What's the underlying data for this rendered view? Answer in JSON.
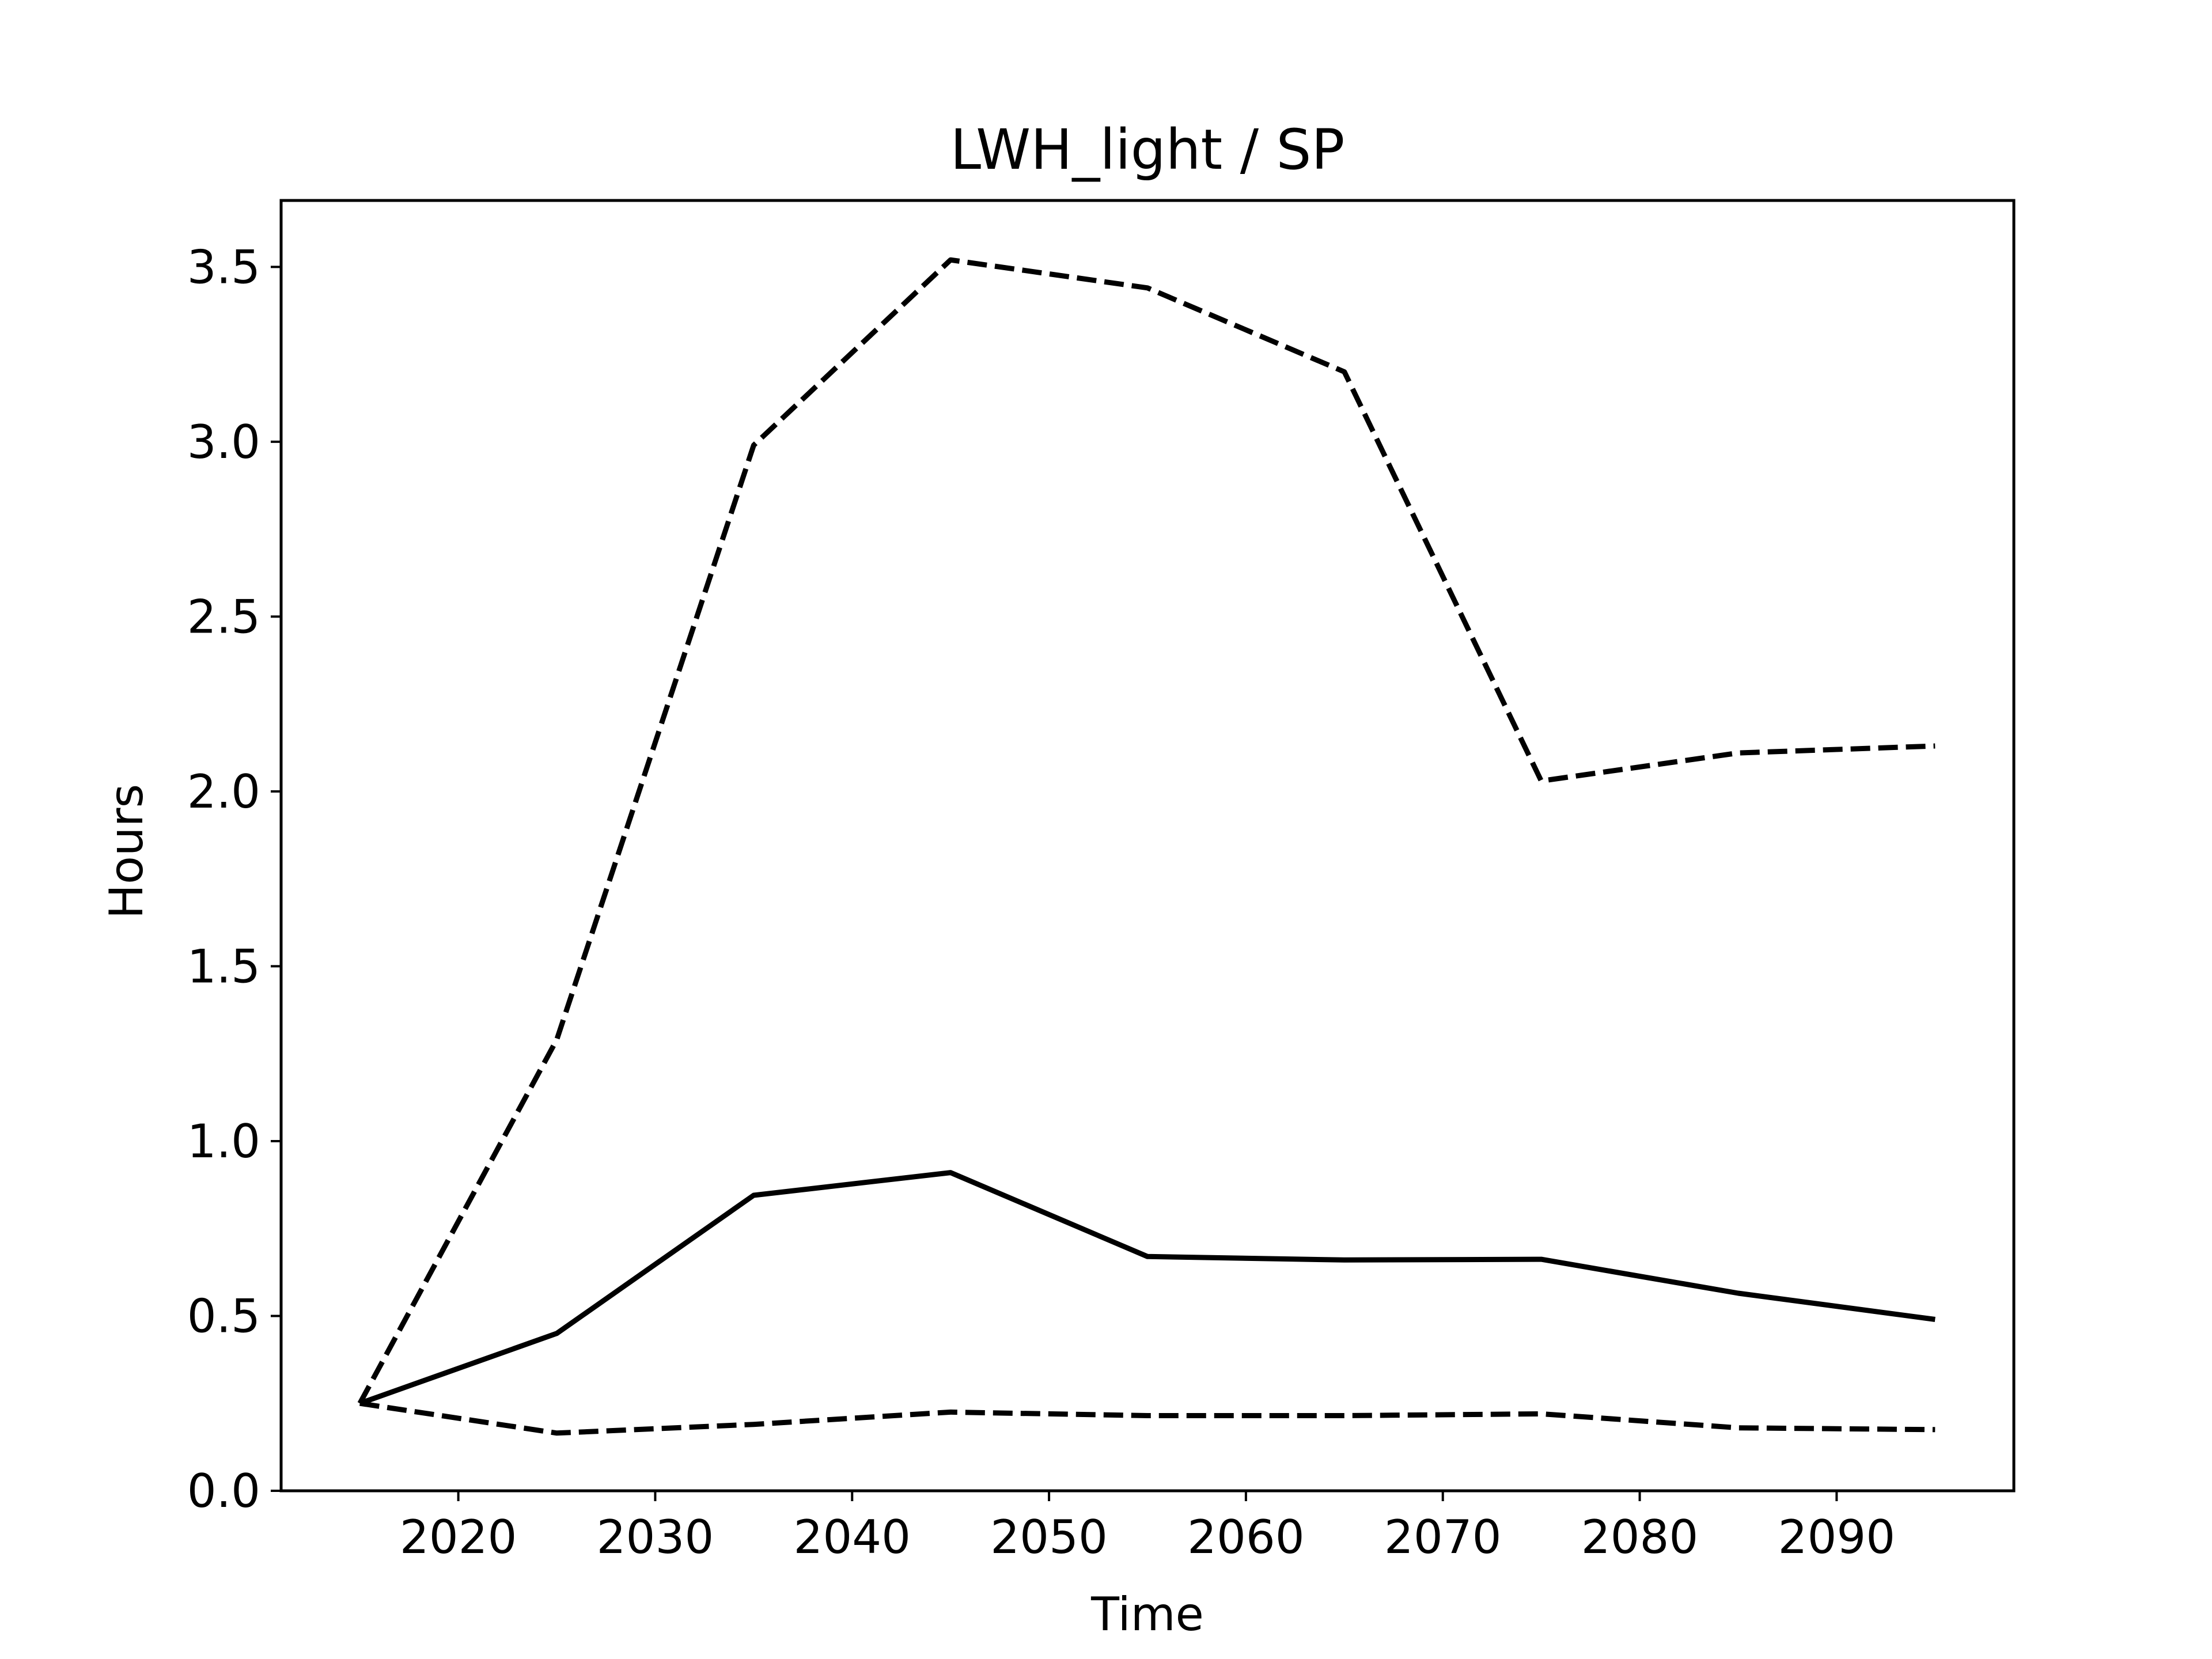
{
  "chart_data": {
    "type": "line",
    "title": "LWH_light / SP",
    "xlabel": "Time",
    "ylabel": "Hours",
    "xlim": [
      2011,
      2099
    ],
    "ylim": [
      0,
      3.69
    ],
    "grid": false,
    "xticks": [
      2020,
      2030,
      2040,
      2050,
      2060,
      2070,
      2080,
      2090
    ],
    "yticks": [
      0.0,
      0.5,
      1.0,
      1.5,
      2.0,
      2.5,
      3.0,
      3.5
    ],
    "x": [
      2015,
      2025,
      2035,
      2045,
      2055,
      2065,
      2075,
      2085,
      2095
    ],
    "series": [
      {
        "style": "dashed",
        "color": "#000000",
        "values": [
          0.25,
          1.29,
          2.99,
          3.52,
          3.44,
          3.2,
          2.03,
          2.11,
          2.13
        ]
      },
      {
        "style": "solid",
        "color": "#000000",
        "values": [
          0.25,
          0.45,
          0.845,
          0.91,
          0.67,
          0.66,
          0.662,
          0.565,
          0.49
        ]
      },
      {
        "style": "dashed",
        "color": "#000000",
        "values": [
          0.25,
          0.165,
          0.19,
          0.225,
          0.215,
          0.215,
          0.22,
          0.18,
          0.175
        ]
      }
    ]
  }
}
